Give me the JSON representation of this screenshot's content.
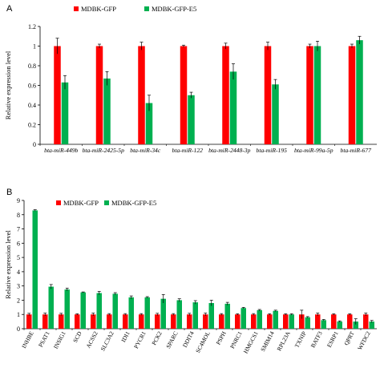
{
  "colors": {
    "control": "#ff0000",
    "treated": "#00b050",
    "error": "#000000",
    "axis": "#000000"
  },
  "chart_data": [
    {
      "type": "bar",
      "panel": "A",
      "ylabel": "Relative expression level",
      "ylim": [
        0,
        1.2
      ],
      "yticks": [
        "0",
        "0.2",
        "0.4",
        "0.6",
        "0.8",
        "1",
        "1.2"
      ],
      "ytick_values": [
        0,
        0.2,
        0.4,
        0.6,
        0.8,
        1.0,
        1.2
      ],
      "legend": "top-left",
      "categories": [
        "bta-miR-449b",
        "bta-miR-2425-5p",
        "bta-miR-34c",
        "bta-miR-122",
        "bta-miR-2448-3p",
        "bta-miR-195",
        "bta-miR-99a-5p",
        "bta-miR-677"
      ],
      "series": [
        {
          "name": "MDBK-GFP",
          "values": [
            1.0,
            1.0,
            1.0,
            1.0,
            1.0,
            1.0,
            1.0,
            1.0
          ],
          "errors": [
            0.08,
            0.02,
            0.04,
            0.01,
            0.03,
            0.04,
            0.02,
            0.02
          ]
        },
        {
          "name": "MDBK-GFP-E5",
          "values": [
            0.63,
            0.67,
            0.42,
            0.5,
            0.74,
            0.61,
            1.0,
            1.06
          ],
          "errors": [
            0.07,
            0.07,
            0.08,
            0.03,
            0.08,
            0.05,
            0.05,
            0.04
          ]
        }
      ]
    },
    {
      "type": "bar",
      "panel": "B",
      "ylabel": "Relative expression level",
      "ylim": [
        0,
        9
      ],
      "yticks": [
        "0",
        "1",
        "2",
        "3",
        "4",
        "5",
        "6",
        "7",
        "8",
        "9"
      ],
      "ytick_values": [
        0,
        1,
        2,
        3,
        4,
        5,
        6,
        7,
        8,
        9
      ],
      "legend": "top-left",
      "categories": [
        "INHBE",
        "PSAT1",
        "INSIG1",
        "SCD",
        "ACSS2",
        "SLC3A2",
        "IDI1",
        "PYCR1",
        "PCK2",
        "SPARC",
        "DDIT4",
        "SC4MOL",
        "PSPH",
        "PNRC1",
        "HMGCS1",
        "SMIM14",
        "RPL23A",
        "TXNIP",
        "BATF3",
        "ESRP1",
        "QPRT",
        "WFDC2"
      ],
      "series": [
        {
          "name": "MDBK-GFP",
          "values": [
            1,
            1,
            1,
            1,
            1,
            1,
            1,
            1,
            1,
            1,
            1,
            1,
            1,
            1,
            1,
            1,
            1,
            1,
            1,
            1,
            1,
            1
          ],
          "errors": [
            0.08,
            0.1,
            0.08,
            0.05,
            0.1,
            0.06,
            0.06,
            0.06,
            0.08,
            0.06,
            0.08,
            0.1,
            0.06,
            0.05,
            0.06,
            0.05,
            0.05,
            0.3,
            0.1,
            0.05,
            0.05,
            0.1
          ]
        },
        {
          "name": "MDBK-GFP-E5",
          "values": [
            8.3,
            2.95,
            2.75,
            2.55,
            2.5,
            2.45,
            2.2,
            2.2,
            2.1,
            2.0,
            1.85,
            1.8,
            1.75,
            1.45,
            1.3,
            1.25,
            1.0,
            0.8,
            0.6,
            0.5,
            0.5,
            0.5
          ],
          "errors": [
            0.05,
            0.15,
            0.1,
            0.03,
            0.12,
            0.08,
            0.1,
            0.05,
            0.3,
            0.1,
            0.12,
            0.2,
            0.1,
            0.05,
            0.05,
            0.05,
            0.05,
            0.05,
            0.05,
            0.05,
            0.2,
            0.08
          ]
        }
      ]
    }
  ]
}
